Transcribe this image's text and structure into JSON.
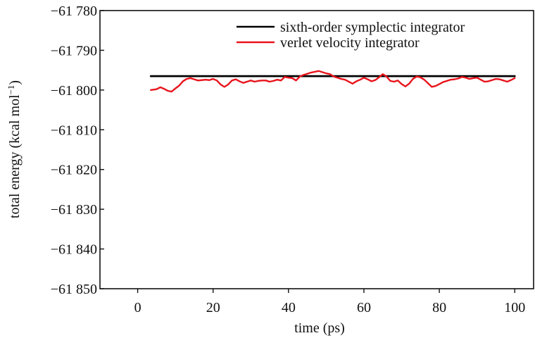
{
  "chart_data": {
    "type": "line",
    "title": "",
    "xlabel": "time (ps)",
    "ylabel": "total energy (kcal mol",
    "ylabel_superscript": "−1",
    "ylabel_suffix": ")",
    "xlim": [
      -10,
      105
    ],
    "ylim": [
      -61850,
      -61780
    ],
    "x_ticks": [
      0,
      20,
      40,
      60,
      80,
      100
    ],
    "x_tick_labels": [
      "0",
      "20",
      "40",
      "60",
      "80",
      "100"
    ],
    "y_ticks": [
      -61780,
      -61790,
      -61800,
      -61810,
      -61820,
      -61830,
      -61840,
      -61850
    ],
    "y_tick_labels": [
      "−61 780",
      "−61 790",
      "−61 800",
      "−61 810",
      "−61 820",
      "−61 830",
      "−61 840",
      "−61 850"
    ],
    "grid": false,
    "legend_position": "top-right",
    "series": [
      {
        "name": "sixth-order symplectic integrator",
        "color": "#000000",
        "x": [
          3.5,
          100
        ],
        "y": [
          -61796.5,
          -61796.5
        ]
      },
      {
        "name": "verlet velocity integrator",
        "color": "#e8141c",
        "x": [
          3.5,
          5,
          6,
          7,
          8,
          9,
          10,
          11,
          12,
          13,
          14,
          15,
          16,
          17,
          18,
          19,
          20,
          21,
          22,
          23,
          24,
          25,
          26,
          27,
          28,
          29,
          30,
          31,
          32,
          33,
          34,
          35,
          36,
          37,
          38,
          39,
          40,
          41,
          42,
          43,
          44,
          45,
          46,
          47,
          48,
          49,
          50,
          51,
          52,
          53,
          54,
          55,
          56,
          57,
          58,
          59,
          60,
          61,
          62,
          63,
          64,
          65,
          66,
          67,
          68,
          69,
          70,
          71,
          72,
          73,
          74,
          75,
          76,
          77,
          78,
          79,
          80,
          81,
          82,
          83,
          84,
          85,
          86,
          87,
          88,
          89,
          90,
          91,
          92,
          93,
          94,
          95,
          96,
          97,
          98,
          99,
          100
        ],
        "y": [
          -61800.0,
          -61799.8,
          -61799.3,
          -61799.7,
          -61800.2,
          -61800.4,
          -61799.6,
          -61798.9,
          -61797.8,
          -61797.2,
          -61797.0,
          -61797.3,
          -61797.6,
          -61797.5,
          -61797.4,
          -61797.5,
          -61797.2,
          -61797.6,
          -61798.6,
          -61799.2,
          -61798.6,
          -61797.6,
          -61797.3,
          -61797.8,
          -61798.2,
          -61797.9,
          -61797.6,
          -61797.9,
          -61797.7,
          -61797.6,
          -61797.6,
          -61797.9,
          -61797.7,
          -61797.4,
          -61797.6,
          -61796.7,
          -61796.9,
          -61797.0,
          -61797.6,
          -61796.6,
          -61796.2,
          -61795.9,
          -61795.6,
          -61795.4,
          -61795.2,
          -61795.5,
          -61795.8,
          -61796.0,
          -61796.6,
          -61796.9,
          -61797.2,
          -61797.4,
          -61797.9,
          -61798.4,
          -61797.8,
          -61797.4,
          -61796.9,
          -61797.3,
          -61797.8,
          -61797.5,
          -61796.8,
          -61796.0,
          -61796.6,
          -61797.7,
          -61797.9,
          -61797.6,
          -61798.5,
          -61799.1,
          -61798.4,
          -61797.2,
          -61796.6,
          -61796.8,
          -61797.4,
          -61798.3,
          -61799.2,
          -61799.0,
          -61798.5,
          -61798.0,
          -61797.7,
          -61797.4,
          -61797.3,
          -61797.1,
          -61796.7,
          -61796.9,
          -61797.2,
          -61797.0,
          -61796.9,
          -61797.4,
          -61797.9,
          -61797.8,
          -61797.5,
          -61797.2,
          -61797.3,
          -61797.6,
          -61797.9,
          -61797.5,
          -61797.0
        ]
      }
    ]
  }
}
